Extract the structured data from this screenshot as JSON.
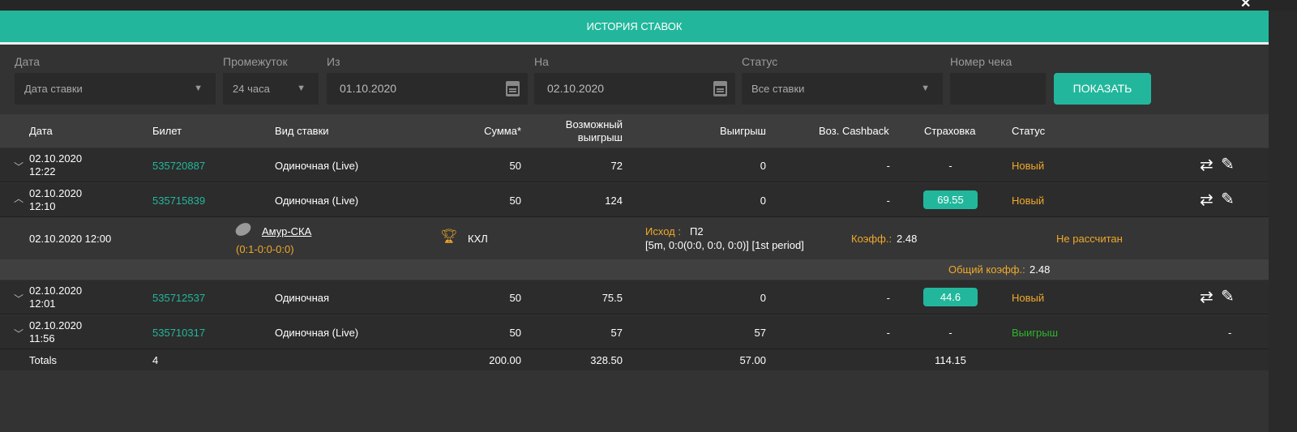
{
  "window": {
    "close_icon": "close-icon"
  },
  "header": {
    "title": "ИСТОРИЯ СТАВОК"
  },
  "filters": {
    "date": {
      "label": "Дата",
      "value": "Дата ставки"
    },
    "period": {
      "label": "Промежуток",
      "value": "24 часа"
    },
    "from": {
      "label": "Из",
      "value": "01.10.2020"
    },
    "to": {
      "label": "На",
      "value": "02.10.2020"
    },
    "status": {
      "label": "Статус",
      "value": "Все ставки"
    },
    "receipt": {
      "label": "Номер чека",
      "value": ""
    },
    "show_button": "ПОКАЗАТЬ"
  },
  "columns": {
    "date": "Дата",
    "ticket": "Билет",
    "type": "Вид ставки",
    "sum": "Сумма*",
    "possible1": "Возможный",
    "possible2": "выигрыш",
    "win": "Выигрыш",
    "cashback": "Воз. Cashback",
    "insurance": "Страховка",
    "status": "Статус"
  },
  "rows": [
    {
      "date": "02.10.2020",
      "time": "12:22",
      "ticket": "535720887",
      "type": "Одиночная (Live)",
      "sum": "50",
      "possible": "72",
      "win": "0",
      "cashback": "-",
      "insurance": "-",
      "status": "Новый",
      "expanded": false
    },
    {
      "date": "02.10.2020",
      "time": "12:10",
      "ticket": "535715839",
      "type": "Одиночная (Live)",
      "sum": "50",
      "possible": "124",
      "win": "0",
      "cashback": "-",
      "insurance": "69.55",
      "status": "Новый",
      "expanded": true
    },
    {
      "date": "02.10.2020",
      "time": "12:01",
      "ticket": "535712537",
      "type": "Одиночная",
      "sum": "50",
      "possible": "75.5",
      "win": "0",
      "cashback": "-",
      "insurance": "44.6",
      "status": "Новый",
      "expanded": false
    },
    {
      "date": "02.10.2020",
      "time": "11:56",
      "ticket": "535710317",
      "type": "Одиночная (Live)",
      "sum": "50",
      "possible": "57",
      "win": "57",
      "cashback": "-",
      "insurance": "-",
      "status": "Выигрыш",
      "action": "-",
      "expanded": false
    }
  ],
  "detail": {
    "datetime": "02.10.2020 12:00",
    "event": "Амур-СКА",
    "score": "(0:1-0:0-0:0)",
    "league": "КХЛ",
    "outcome_label": "Исход :",
    "outcome": "П2",
    "market": "[5m, 0:0(0:0, 0:0, 0:0)] [1st period]",
    "coef_label": "Коэфф.:",
    "coef": "2.48",
    "status": "Не рассчитан",
    "total_coef_label": "Общий коэфф.:",
    "total_coef": "2.48"
  },
  "totals": {
    "label": "Totals",
    "count": "4",
    "sum": "200.00",
    "possible": "328.50",
    "win": "57.00",
    "insurance": "114.15"
  },
  "colors": {
    "accent": "#22b79c",
    "pending": "#f0a92a",
    "won": "#2db52d"
  }
}
